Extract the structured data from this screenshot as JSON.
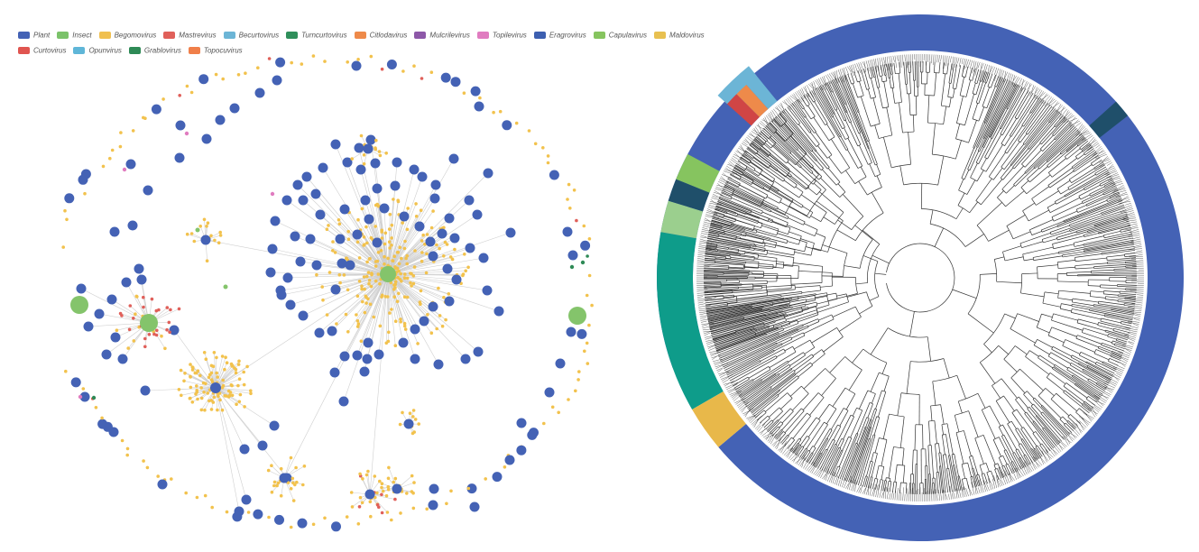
{
  "legend": {
    "rows": [
      [
        {
          "label": "Plant",
          "color": "#4462b5"
        },
        {
          "label": "Insect",
          "color": "#7bc26a"
        },
        {
          "label": "Begomovirus",
          "color": "#f0c050"
        },
        {
          "label": "Mastrevirus",
          "color": "#e0605a"
        },
        {
          "label": "Becurtovirus",
          "color": "#6cb5d6"
        },
        {
          "label": "Turncurtovirus",
          "color": "#2f8f5b"
        },
        {
          "label": "Citlodavirus",
          "color": "#ee8a4a"
        },
        {
          "label": "Mulcrilevirus",
          "color": "#8d58a8"
        },
        {
          "label": "Topilevirus",
          "color": "#e07cc0"
        },
        {
          "label": "Eragrovirus",
          "color": "#3d5fb0"
        },
        {
          "label": "Capulavirus",
          "color": "#86c45f"
        },
        {
          "label": "Maldovirus",
          "color": "#e8c050"
        }
      ],
      [
        {
          "label": "Curtovirus",
          "color": "#e05550"
        },
        {
          "label": "Opunvirus",
          "color": "#5fb6d8"
        },
        {
          "label": "Grablovirus",
          "color": "#2e8a56"
        },
        {
          "label": "Topocuvirus",
          "color": "#f07f4a"
        }
      ]
    ]
  },
  "colors": {
    "plant": "#4462b5",
    "insect": "#84c46b",
    "begomo": "#f2c24d",
    "mastre": "#e0605a",
    "grablo": "#2e8a56",
    "topile": "#e07cc0",
    "becurto": "#6cb5d6",
    "edge": "#cfcfcf",
    "ring_main": "#4462b5",
    "ring_teal": "#0e9c8a",
    "ring_dark": "#1f4f6a"
  }
}
